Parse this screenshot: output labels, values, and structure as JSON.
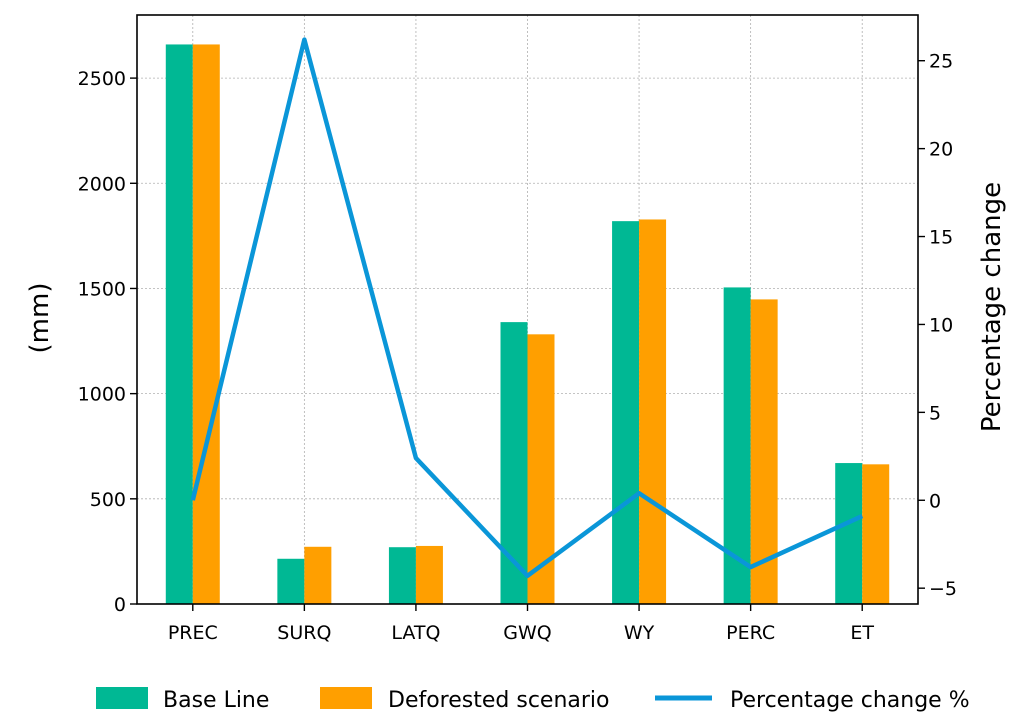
{
  "chart_data": {
    "type": "bar",
    "categories": [
      "PREC",
      "SURQ",
      "LATQ",
      "GWQ",
      "WY",
      "PERC",
      "ET"
    ],
    "series": [
      {
        "name": "Base Line",
        "values": [
          2660,
          215,
          270,
          1340,
          1820,
          1505,
          670
        ],
        "color": "#00b894"
      },
      {
        "name": "Deforested scenario",
        "values": [
          2660,
          272,
          276,
          1282,
          1828,
          1448,
          664
        ],
        "color": "#ff9f00"
      }
    ],
    "line_series": {
      "name": "Percentage change %",
      "values": [
        0,
        26.2,
        2.4,
        -4.3,
        0.4,
        -3.8,
        -0.9
      ],
      "color": "#0a96d8"
    },
    "ylabel": "(mm)",
    "y2label": "Percentage change",
    "ylim": [
      0,
      2800
    ],
    "y2lim": [
      -5.9,
      27.6
    ],
    "yticks": [
      0,
      500,
      1000,
      1500,
      2000,
      2500
    ],
    "y2ticks": [
      -5,
      0,
      5,
      10,
      15,
      20,
      25
    ],
    "grid": true,
    "legend_position": "bottom"
  }
}
